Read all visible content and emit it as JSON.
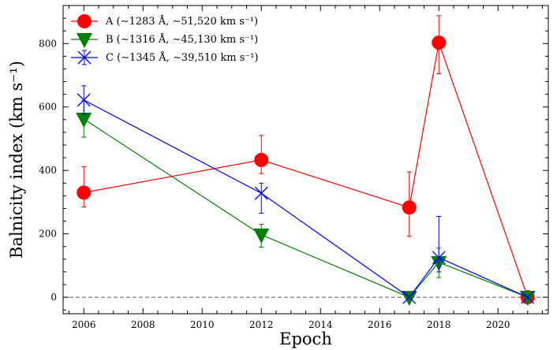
{
  "chart_data": {
    "type": "line",
    "xlabel": "Epoch",
    "ylabel": "Balnicity index (km s⁻¹)",
    "xlim": [
      2005.3,
      2021.7
    ],
    "ylim": [
      -52,
      920
    ],
    "xticks": [
      2006,
      2008,
      2010,
      2012,
      2014,
      2016,
      2018,
      2020
    ],
    "yticks": [
      0,
      200,
      400,
      600,
      800
    ],
    "grid": false,
    "legend_position": "top-left",
    "reference_line": {
      "y": 0,
      "style": "dashed"
    },
    "series": [
      {
        "name": "A (∼1283 Å, ∼51,520 km s⁻¹)",
        "marker": "circle",
        "color": "#ff0000",
        "points": [
          {
            "x": 2006,
            "y": 330,
            "lo": 285,
            "hi": 412
          },
          {
            "x": 2012,
            "y": 433,
            "lo": 390,
            "hi": 510
          },
          {
            "x": 2017,
            "y": 283,
            "lo": 192,
            "hi": 395
          },
          {
            "x": 2018,
            "y": 803,
            "lo": 705,
            "hi": 888
          },
          {
            "x": 2021,
            "y": 0,
            "lo": 0,
            "hi": 0
          }
        ]
      },
      {
        "name": "B (∼1316 Å, ∼45,130 km s⁻¹)",
        "marker": "triangle-down",
        "color": "#008000",
        "points": [
          {
            "x": 2006,
            "y": 562,
            "lo": 505,
            "hi": 620
          },
          {
            "x": 2012,
            "y": 197,
            "lo": 158,
            "hi": 230
          },
          {
            "x": 2017,
            "y": 0,
            "lo": 0,
            "hi": 0
          },
          {
            "x": 2018,
            "y": 110,
            "lo": 62,
            "hi": 155
          },
          {
            "x": 2021,
            "y": 0,
            "lo": 0,
            "hi": 0
          }
        ]
      },
      {
        "name": "C (∼1345 Å, ∼39,510 km s⁻¹)",
        "marker": "x",
        "color": "#0000ff",
        "points": [
          {
            "x": 2006,
            "y": 622,
            "lo": 578,
            "hi": 667
          },
          {
            "x": 2012,
            "y": 328,
            "lo": 265,
            "hi": 360
          },
          {
            "x": 2017,
            "y": 0,
            "lo": 0,
            "hi": 0
          },
          {
            "x": 2018,
            "y": 125,
            "lo": 80,
            "hi": 255
          },
          {
            "x": 2021,
            "y": 0,
            "lo": 0,
            "hi": 0
          }
        ]
      }
    ]
  }
}
